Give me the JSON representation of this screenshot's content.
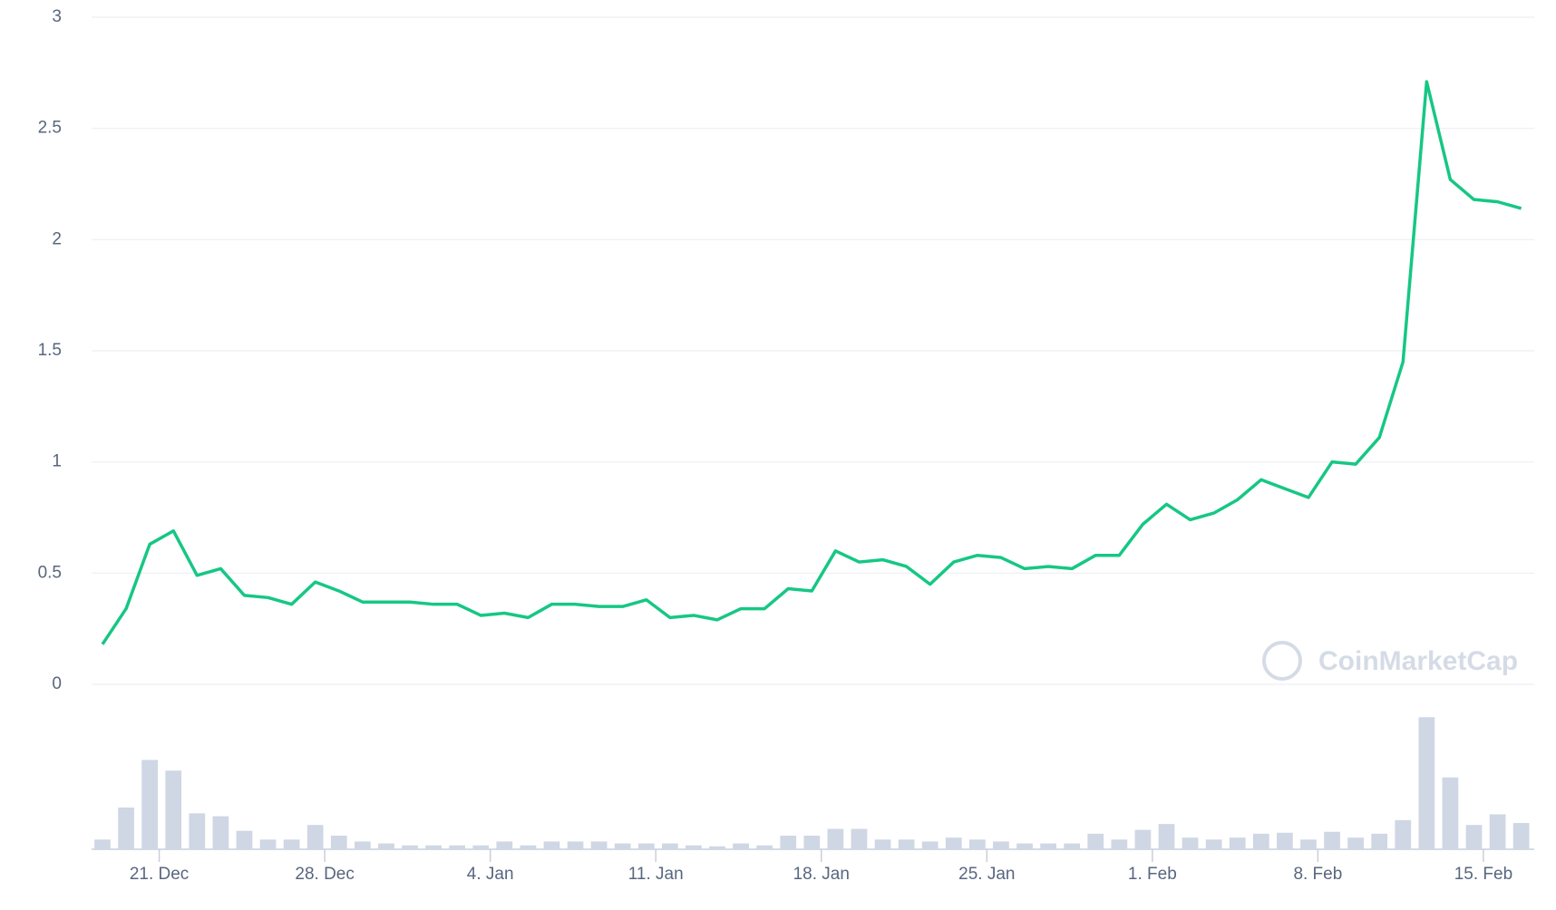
{
  "chart_data": {
    "type": "line",
    "watermark": "CoinMarketCap",
    "x": [
      0,
      1,
      2,
      3,
      4,
      5,
      6,
      7,
      8,
      9,
      10,
      11,
      12,
      13,
      14,
      15,
      16,
      17,
      18,
      19,
      20,
      21,
      22,
      23,
      24,
      25,
      26,
      27,
      28,
      29,
      30,
      31,
      32,
      33,
      34,
      35,
      36,
      37,
      38,
      39,
      40,
      41,
      42,
      43,
      44,
      45,
      46,
      47,
      48,
      49,
      50,
      51,
      52,
      53,
      54,
      55,
      56,
      57,
      58,
      59,
      60
    ],
    "xlim": [
      -0.46,
      60.55
    ],
    "xticks": [
      {
        "value": 2.4,
        "label": "21. Dec"
      },
      {
        "value": 9.4,
        "label": "28. Dec"
      },
      {
        "value": 16.4,
        "label": "4. Jan"
      },
      {
        "value": 23.4,
        "label": "11. Jan"
      },
      {
        "value": 30.4,
        "label": "18. Jan"
      },
      {
        "value": 37.4,
        "label": "25. Jan"
      },
      {
        "value": 44.4,
        "label": "1. Feb"
      },
      {
        "value": 51.4,
        "label": "8. Feb"
      },
      {
        "value": 58.4,
        "label": "15. Feb"
      }
    ],
    "ylim": [
      0,
      3
    ],
    "yticks": [
      0,
      0.5,
      1,
      1.5,
      2,
      2.5,
      3
    ],
    "grid": true,
    "series": [
      {
        "color": "#16c784",
        "values": [
          0.18,
          0.34,
          0.63,
          0.69,
          0.49,
          0.52,
          0.4,
          0.39,
          0.36,
          0.46,
          0.42,
          0.37,
          0.37,
          0.37,
          0.36,
          0.36,
          0.31,
          0.32,
          0.3,
          0.36,
          0.36,
          0.35,
          0.35,
          0.38,
          0.3,
          0.31,
          0.29,
          0.34,
          0.34,
          0.43,
          0.42,
          0.6,
          0.55,
          0.56,
          0.53,
          0.45,
          0.55,
          0.58,
          0.57,
          0.52,
          0.53,
          0.52,
          0.58,
          0.58,
          0.72,
          0.81,
          0.74,
          0.77,
          0.83,
          0.92,
          0.88,
          0.84,
          1.0,
          0.99,
          1.11,
          1.45,
          2.71,
          2.27,
          2.18,
          2.17,
          2.14
        ]
      }
    ],
    "volume": {
      "color": "#cfd6e4",
      "ylim": [
        0,
        140
      ],
      "values": [
        10,
        43,
        92,
        81,
        37,
        34,
        19,
        10,
        10,
        25,
        14,
        8,
        6,
        4,
        4,
        4,
        4,
        8,
        4,
        8,
        8,
        8,
        6,
        6,
        6,
        4,
        3,
        6,
        4,
        14,
        14,
        21,
        21,
        10,
        10,
        8,
        12,
        10,
        8,
        6,
        6,
        6,
        16,
        10,
        20,
        26,
        12,
        10,
        12,
        16,
        17,
        10,
        18,
        12,
        16,
        30,
        136,
        74,
        25,
        36,
        27
      ]
    }
  }
}
